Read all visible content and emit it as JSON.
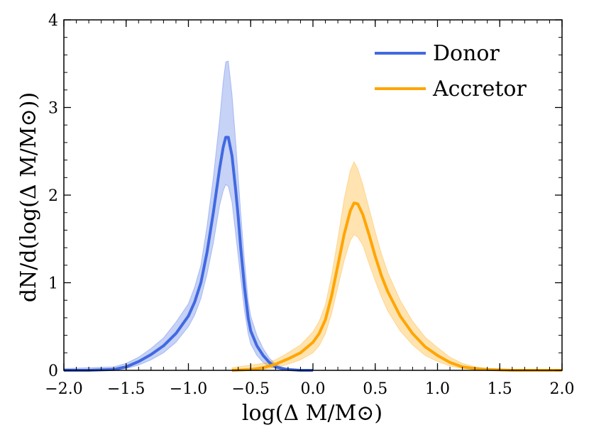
{
  "chart_data": {
    "type": "area",
    "xlabel": "log(Δ M/M⊙)",
    "ylabel": "dN/d(log(Δ M/M⊙))",
    "xlim": [
      -2.0,
      2.0
    ],
    "ylim": [
      0,
      4
    ],
    "x_ticks": [
      -2.0,
      -1.5,
      -1.0,
      -0.5,
      0.0,
      0.5,
      1.0,
      1.5,
      2.0
    ],
    "x_tick_labels": [
      "−2.0",
      "−1.5",
      "−1.0",
      "−0.5",
      "0.0",
      "0.5",
      "1.0",
      "1.5",
      "2.0"
    ],
    "y_ticks": [
      0,
      1,
      2,
      3,
      4
    ],
    "y_tick_labels": [
      "0",
      "1",
      "2",
      "3",
      "4"
    ],
    "grid": false,
    "legend_position": "top-right",
    "series": [
      {
        "name": "Donor",
        "color": "#4169e1",
        "band_color": "#4169e1",
        "x": [
          -2.0,
          -1.8,
          -1.6,
          -1.5,
          -1.4,
          -1.3,
          -1.2,
          -1.1,
          -1.0,
          -0.95,
          -0.9,
          -0.85,
          -0.8,
          -0.75,
          -0.72,
          -0.7,
          -0.68,
          -0.65,
          -0.62,
          -0.6,
          -0.58,
          -0.55,
          -0.52,
          -0.5,
          -0.45,
          -0.4,
          -0.35,
          -0.3,
          -0.25,
          -0.2,
          -0.1,
          0.0
        ],
        "y": [
          0.0,
          0.0,
          0.01,
          0.04,
          0.1,
          0.18,
          0.28,
          0.42,
          0.62,
          0.78,
          1.0,
          1.35,
          1.8,
          2.3,
          2.55,
          2.66,
          2.66,
          2.45,
          2.05,
          1.75,
          1.4,
          0.95,
          0.6,
          0.45,
          0.28,
          0.17,
          0.09,
          0.04,
          0.02,
          0.01,
          0.0,
          0.0
        ],
        "y_low": [
          0.0,
          0.0,
          0.0,
          0.02,
          0.06,
          0.12,
          0.2,
          0.32,
          0.5,
          0.63,
          0.82,
          1.1,
          1.45,
          1.88,
          2.05,
          2.12,
          2.1,
          1.92,
          1.55,
          1.3,
          1.05,
          0.68,
          0.42,
          0.3,
          0.17,
          0.09,
          0.04,
          0.02,
          0.01,
          0.0,
          0.0,
          0.0
        ],
        "y_high": [
          0.02,
          0.03,
          0.04,
          0.08,
          0.15,
          0.25,
          0.37,
          0.55,
          0.76,
          0.95,
          1.2,
          1.65,
          2.2,
          2.85,
          3.3,
          3.52,
          3.53,
          3.15,
          2.6,
          2.2,
          1.8,
          1.25,
          0.8,
          0.62,
          0.4,
          0.25,
          0.14,
          0.07,
          0.04,
          0.02,
          0.01,
          0.0
        ]
      },
      {
        "name": "Accretor",
        "color": "#ffa500",
        "band_color": "#ffa500",
        "x": [
          -0.65,
          -0.5,
          -0.4,
          -0.3,
          -0.2,
          -0.1,
          0.0,
          0.05,
          0.1,
          0.15,
          0.2,
          0.25,
          0.3,
          0.33,
          0.36,
          0.4,
          0.45,
          0.5,
          0.55,
          0.6,
          0.7,
          0.8,
          0.9,
          1.0,
          1.1,
          1.2,
          1.3,
          1.4,
          1.6,
          1.8,
          2.0
        ],
        "y": [
          0.0,
          0.01,
          0.03,
          0.07,
          0.13,
          0.2,
          0.32,
          0.42,
          0.58,
          0.85,
          1.2,
          1.55,
          1.82,
          1.91,
          1.9,
          1.78,
          1.55,
          1.3,
          1.08,
          0.9,
          0.62,
          0.42,
          0.27,
          0.17,
          0.09,
          0.04,
          0.02,
          0.01,
          0.0,
          0.0,
          0.0
        ],
        "y_low": [
          0.0,
          0.0,
          0.01,
          0.03,
          0.07,
          0.12,
          0.2,
          0.28,
          0.42,
          0.65,
          0.95,
          1.25,
          1.48,
          1.55,
          1.52,
          1.43,
          1.22,
          1.02,
          0.84,
          0.68,
          0.45,
          0.29,
          0.17,
          0.1,
          0.05,
          0.02,
          0.01,
          0.0,
          0.0,
          0.0,
          0.0
        ],
        "y_high": [
          0.03,
          0.06,
          0.08,
          0.12,
          0.2,
          0.29,
          0.44,
          0.56,
          0.75,
          1.08,
          1.5,
          1.95,
          2.28,
          2.38,
          2.3,
          2.12,
          1.85,
          1.58,
          1.33,
          1.12,
          0.8,
          0.56,
          0.38,
          0.26,
          0.15,
          0.08,
          0.04,
          0.02,
          0.01,
          0.01,
          0.01
        ]
      }
    ]
  }
}
